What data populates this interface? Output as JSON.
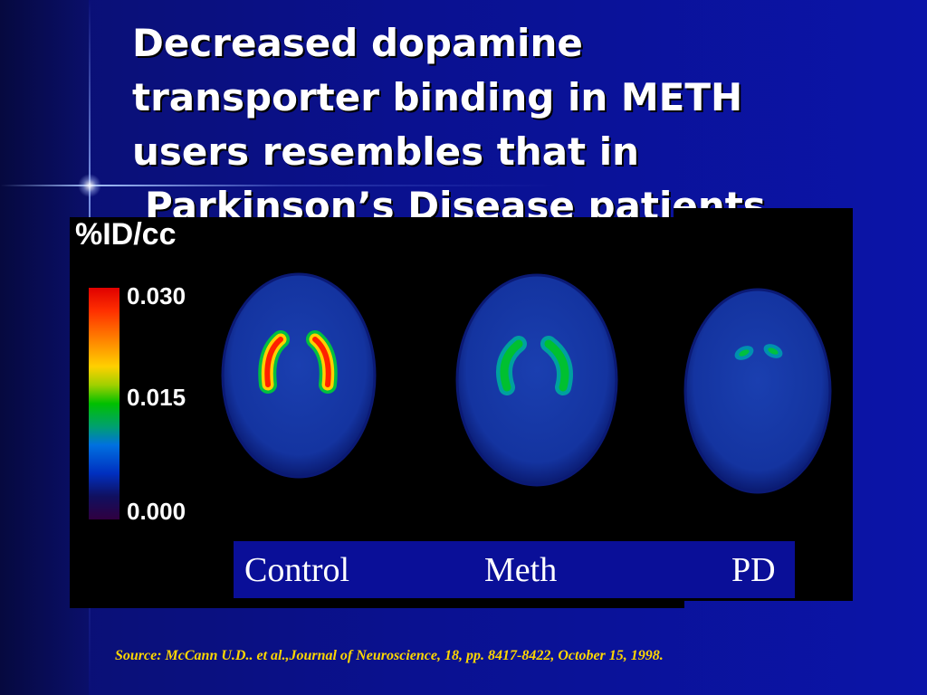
{
  "slide": {
    "title_lines": [
      "Decreased dopamine",
      "transporter binding in METH",
      "users resembles that in",
      "Parkinson’s Disease patients"
    ],
    "source": "Source: McCann U.D.. et al.,Journal of Neuroscience, 18, pp. 8417-8422, October 15, 1998."
  },
  "figure": {
    "colorbar_title": "%ID/cc",
    "colorbar_ticks": [
      "0.030",
      "0.015",
      "0.000"
    ],
    "panels": [
      {
        "label": "Control"
      },
      {
        "label": "Meth"
      },
      {
        "label": "PD"
      }
    ]
  },
  "colors": {
    "background": "#0a1190",
    "title_text": "#ffffff",
    "source_text": "#ffd700",
    "label_box": "#0a0f98"
  }
}
